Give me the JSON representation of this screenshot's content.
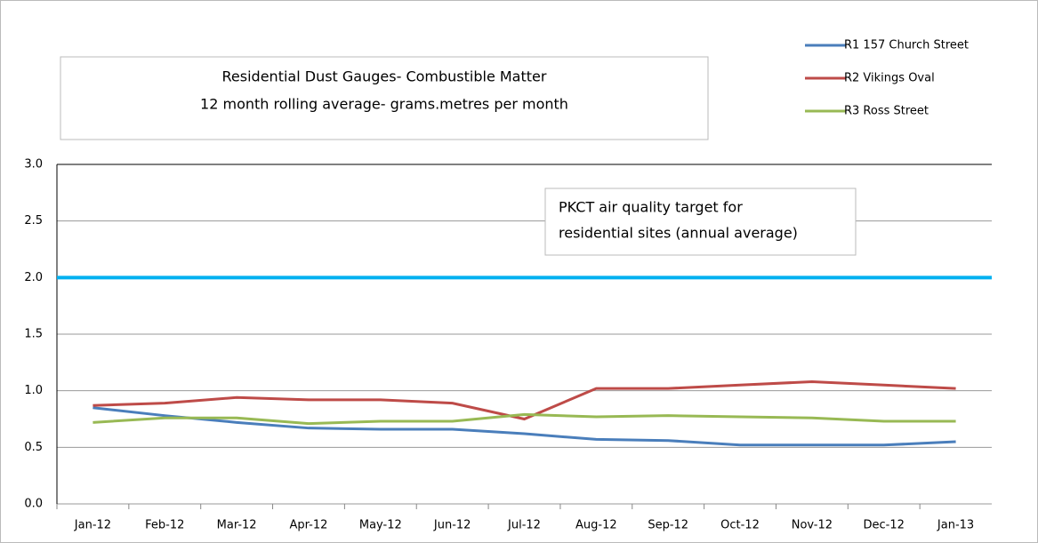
{
  "chart_data": {
    "type": "line",
    "title": [
      "Residential Dust Gauges-   Combustible Matter",
      "12 month  rolling average- grams.metres per month"
    ],
    "categories": [
      "Jan-12",
      "Feb-12",
      "Mar-12",
      "Apr-12",
      "May-12",
      "Jun-12",
      "Jul-12",
      "Aug-12",
      "Sep-12",
      "Oct-12",
      "Nov-12",
      "Dec-12",
      "Jan-13"
    ],
    "series": [
      {
        "name": "R1 157 Church Street",
        "color": "#4a7ebb",
        "values": [
          0.85,
          0.78,
          0.72,
          0.67,
          0.66,
          0.66,
          0.62,
          0.57,
          0.56,
          0.52,
          0.52,
          0.52,
          0.55
        ]
      },
      {
        "name": "R2  Vikings Oval",
        "color": "#be4b48",
        "values": [
          0.87,
          0.89,
          0.94,
          0.92,
          0.92,
          0.89,
          0.75,
          1.02,
          1.02,
          1.05,
          1.08,
          1.05,
          1.02
        ]
      },
      {
        "name": "R3  Ross Street",
        "color": "#98b954",
        "values": [
          0.72,
          0.76,
          0.76,
          0.71,
          0.73,
          0.73,
          0.79,
          0.77,
          0.78,
          0.77,
          0.76,
          0.73,
          0.73
        ]
      }
    ],
    "target": {
      "value": 2,
      "color": "#00b0f0",
      "label": [
        "PKCT air quality target for",
        "residential sites (annual average)"
      ]
    },
    "ylim": [
      0,
      3
    ],
    "yticks": [
      {
        "value": 0,
        "label": "0.0"
      },
      {
        "value": 0.5,
        "label": "0.5"
      },
      {
        "value": 1,
        "label": "1.0"
      },
      {
        "value": 1.5,
        "label": "1.5"
      },
      {
        "value": 2,
        "label": "2.0"
      },
      {
        "value": 2.5,
        "label": "2.5"
      },
      {
        "value": 3,
        "label": "3.0"
      }
    ],
    "grid": true,
    "legend": "top-right"
  }
}
